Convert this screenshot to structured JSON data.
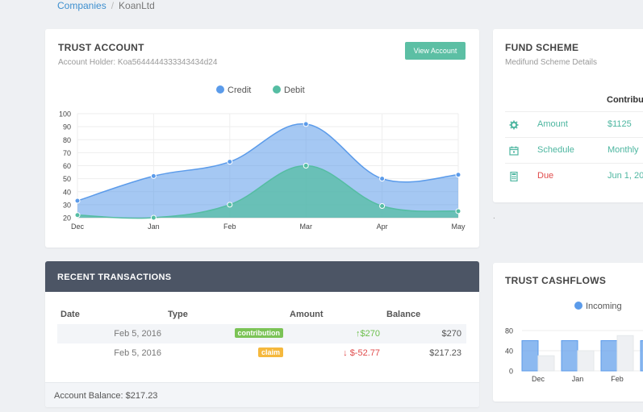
{
  "breadcrumb": {
    "parent": "Companies",
    "separator": "/",
    "current": "KoanLtd"
  },
  "trust_account": {
    "title": "TRUST ACCOUNT",
    "holder": "Account Holder: Koa5644444333343434d24",
    "button_label": "View Account"
  },
  "fund_scheme": {
    "title": "FUND SCHEME",
    "subtitle": "Medifund Scheme Details",
    "column_header": "Contribu",
    "rows": [
      {
        "icon": "gear-icon",
        "label": "Amount",
        "value": "$1125"
      },
      {
        "icon": "calendar-icon",
        "label": "Schedule",
        "value": "Monthly"
      },
      {
        "icon": "calculator-icon",
        "label": "Due",
        "value": "Jun 1, 20"
      }
    ],
    "note": "."
  },
  "transactions": {
    "title": "RECENT TRANSACTIONS",
    "headers": {
      "date": "Date",
      "type": "Type",
      "amount": "Amount",
      "balance": "Balance"
    },
    "rows": [
      {
        "date": "Feb 5, 2016",
        "type": "contribution",
        "amount": "$270",
        "direction": "up",
        "balance": "$270"
      },
      {
        "date": "Feb 5, 2016",
        "type": "claim",
        "amount": "$-52.77",
        "direction": "down",
        "balance": "$217.23"
      }
    ],
    "footer": "Account Balance: $217.23"
  },
  "cashflows": {
    "title": "TRUST CASHFLOWS"
  },
  "colors": {
    "credit": "#5b9bea",
    "debit": "#55bda3",
    "teal_button": "#5cbfa4",
    "header_dark": "#4c5565"
  },
  "chart_data": [
    {
      "type": "area",
      "title": "",
      "categories": [
        "Dec",
        "Jan",
        "Feb",
        "Mar",
        "Apr",
        "May"
      ],
      "series": [
        {
          "name": "Credit",
          "values": [
            33,
            52,
            63,
            92,
            50,
            53
          ]
        },
        {
          "name": "Debit",
          "values": [
            22,
            20,
            30,
            60,
            29,
            25
          ]
        }
      ],
      "ylim": [
        20,
        100
      ],
      "yticks": [
        20,
        30,
        40,
        50,
        60,
        70,
        80,
        90,
        100
      ],
      "legend": "top-center",
      "grid": true
    },
    {
      "type": "bar",
      "title": "",
      "categories": [
        "Dec",
        "Jan",
        "Feb"
      ],
      "series": [
        {
          "name": "Incoming",
          "values": [
            60,
            60,
            60
          ]
        },
        {
          "name": "",
          "values": [
            30,
            40,
            70
          ]
        }
      ],
      "ylim": [
        0,
        80
      ],
      "yticks": [
        0,
        40,
        80
      ],
      "legend": "top-center",
      "grid": true
    }
  ]
}
